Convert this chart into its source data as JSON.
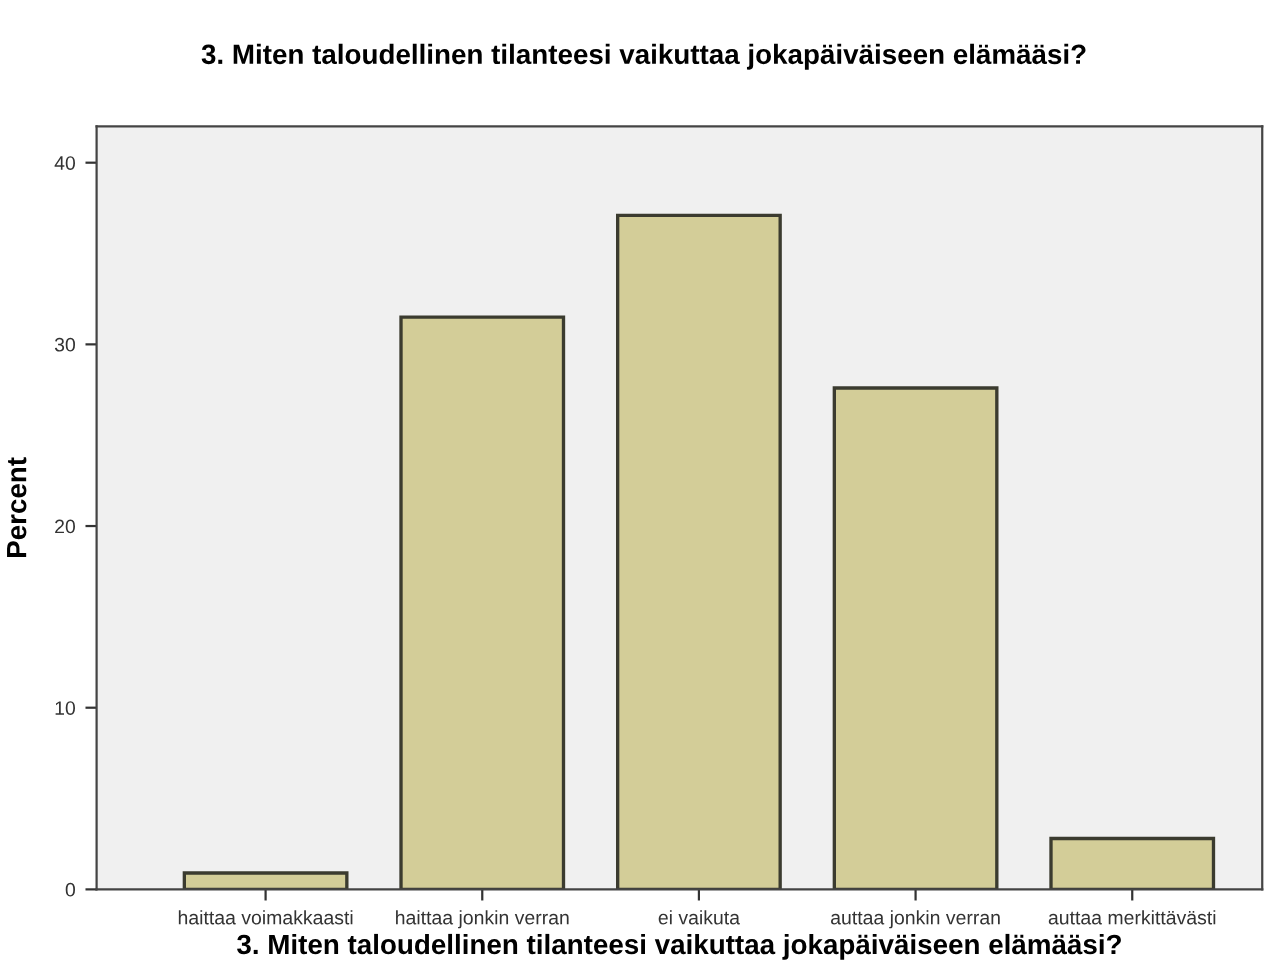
{
  "chart_data": {
    "type": "bar",
    "title": "3. Miten taloudellinen tilanteesi vaikuttaa jokapäiväiseen elämääsi?",
    "xlabel": "3. Miten taloudellinen tilanteesi vaikuttaa jokapäiväiseen elämääsi?",
    "ylabel": "Percent",
    "categories": [
      "haittaa voimakkaasti",
      "haittaa jonkin verran",
      "ei vaikuta",
      "auttaa jonkin verran",
      "auttaa merkittävästi"
    ],
    "values": [
      0.9,
      31.5,
      37.1,
      27.6,
      2.8
    ],
    "color": "#d3cd98",
    "ylim": [
      0,
      42
    ],
    "yticks": [
      0,
      10,
      20,
      30,
      40
    ],
    "grid": false,
    "legend": false
  }
}
